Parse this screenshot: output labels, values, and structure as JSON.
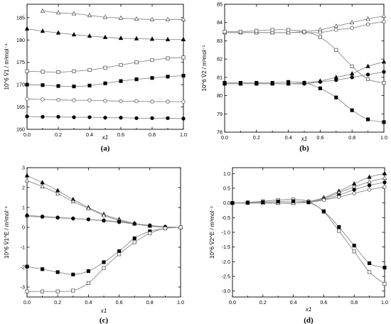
{
  "chart_data": [
    {
      "type": "line",
      "caption": "(a)",
      "xlabel": "x1",
      "ylabel": "10^6 V̄1 / m³mol⁻¹",
      "xlim": [
        0,
        1.0
      ],
      "ylim": [
        160,
        188
      ],
      "xticks": [
        0.0,
        0.2,
        0.4,
        0.6,
        0.8,
        1.0
      ],
      "xtick_labels": [
        "0.0",
        "0.2",
        "0.4",
        "0.6",
        "0.8",
        "1.0"
      ],
      "yticks": [
        160,
        165,
        170,
        175,
        180,
        185
      ],
      "ytick_labels": [
        "160",
        "165",
        "170",
        "175",
        "180",
        "185"
      ],
      "grid": false,
      "legend": "none",
      "series": [
        {
          "marker": "open-triangle",
          "x": [
            0.1,
            0.2,
            0.3,
            0.4,
            0.5,
            0.6,
            0.7,
            0.8,
            0.9,
            1.0
          ],
          "y": [
            186.5,
            186.1,
            185.9,
            185.5,
            185.1,
            184.9,
            184.7,
            184.6,
            184.6,
            184.6
          ]
        },
        {
          "marker": "filled-triangle",
          "x": [
            0.0,
            0.1,
            0.2,
            0.3,
            0.4,
            0.5,
            0.6,
            0.7,
            0.8,
            0.9,
            1.0
          ],
          "y": [
            182.5,
            182.0,
            181.6,
            181.2,
            180.9,
            180.6,
            180.4,
            180.3,
            180.2,
            180.1,
            180.1
          ]
        },
        {
          "marker": "open-square",
          "x": [
            0.0,
            0.1,
            0.2,
            0.3,
            0.4,
            0.5,
            0.6,
            0.7,
            0.8,
            0.9,
            1.0
          ],
          "y": [
            173.0,
            172.9,
            172.8,
            173.0,
            173.3,
            173.8,
            174.4,
            175.0,
            175.5,
            175.9,
            176.1
          ]
        },
        {
          "marker": "filled-square",
          "x": [
            0.0,
            0.1,
            0.2,
            0.3,
            0.4,
            0.5,
            0.6,
            0.7,
            0.8,
            0.9,
            1.0
          ],
          "y": [
            170.0,
            169.9,
            169.7,
            169.6,
            169.8,
            170.3,
            170.8,
            171.2,
            171.5,
            171.8,
            172.0
          ]
        },
        {
          "marker": "open-circle",
          "x": [
            0.0,
            0.1,
            0.2,
            0.3,
            0.4,
            0.5,
            0.6,
            0.7,
            0.8,
            0.9,
            1.0
          ],
          "y": [
            166.8,
            166.7,
            166.6,
            166.5,
            166.5,
            166.4,
            166.3,
            166.3,
            166.2,
            166.2,
            166.2
          ]
        },
        {
          "marker": "filled-circle",
          "x": [
            0.0,
            0.1,
            0.2,
            0.3,
            0.4,
            0.5,
            0.6,
            0.7,
            0.8,
            0.9,
            1.0
          ],
          "y": [
            162.9,
            162.8,
            162.8,
            162.7,
            162.7,
            162.6,
            162.6,
            162.5,
            162.5,
            162.5,
            162.4
          ]
        }
      ]
    },
    {
      "type": "line",
      "caption": "(b)",
      "xlabel": "x1",
      "ylabel": "10^6 V̄2 / m³mol⁻¹",
      "xlim": [
        0,
        1.0
      ],
      "ylim": [
        78,
        85
      ],
      "xticks": [
        0.0,
        0.2,
        0.4,
        0.6,
        0.8,
        1.0
      ],
      "xtick_labels": [
        "0.0",
        "0.2",
        "0.4",
        "0.6",
        "0.8",
        "1.0"
      ],
      "yticks": [
        78,
        79,
        80,
        81,
        82,
        83,
        84,
        85
      ],
      "ytick_labels": [
        "78",
        "79",
        "80",
        "81",
        "82",
        "83",
        "84",
        "85"
      ],
      "grid": false,
      "legend": "none",
      "series": [
        {
          "marker": "open-triangle",
          "x": [
            0.0,
            0.1,
            0.2,
            0.3,
            0.4,
            0.5,
            0.6,
            0.7,
            0.8,
            0.9,
            1.0
          ],
          "y": [
            83.45,
            83.45,
            83.45,
            83.45,
            83.45,
            83.5,
            83.6,
            83.8,
            84.0,
            84.2,
            84.35
          ]
        },
        {
          "marker": "open-circle",
          "x": [
            0.0,
            0.1,
            0.2,
            0.3,
            0.4,
            0.5,
            0.6,
            0.7,
            0.8,
            0.9,
            1.0
          ],
          "y": [
            83.45,
            83.45,
            83.45,
            83.45,
            83.45,
            83.45,
            83.45,
            83.6,
            83.7,
            83.9,
            84.05
          ]
        },
        {
          "marker": "open-square",
          "x": [
            0.0,
            0.1,
            0.2,
            0.3,
            0.4,
            0.5,
            0.6,
            0.7,
            0.8,
            0.9,
            1.0
          ],
          "y": [
            83.5,
            83.5,
            83.55,
            83.6,
            83.6,
            83.5,
            83.2,
            82.5,
            81.6,
            80.9,
            80.7
          ]
        },
        {
          "marker": "filled-triangle",
          "x": [
            0.0,
            0.1,
            0.2,
            0.3,
            0.4,
            0.5,
            0.6,
            0.7,
            0.8,
            0.9,
            1.0
          ],
          "y": [
            80.65,
            80.65,
            80.65,
            80.65,
            80.65,
            80.7,
            80.8,
            81.0,
            81.2,
            81.6,
            81.85
          ]
        },
        {
          "marker": "filled-circle",
          "x": [
            0.0,
            0.1,
            0.2,
            0.3,
            0.4,
            0.5,
            0.6,
            0.7,
            0.8,
            0.9,
            1.0
          ],
          "y": [
            80.65,
            80.65,
            80.65,
            80.65,
            80.65,
            80.65,
            80.75,
            80.85,
            81.0,
            81.15,
            81.3
          ]
        },
        {
          "marker": "filled-square",
          "x": [
            0.0,
            0.1,
            0.2,
            0.3,
            0.4,
            0.5,
            0.6,
            0.7,
            0.8,
            0.9,
            1.0
          ],
          "y": [
            80.7,
            80.7,
            80.7,
            80.7,
            80.75,
            80.7,
            80.4,
            79.9,
            79.2,
            78.7,
            78.55
          ]
        }
      ]
    },
    {
      "type": "line",
      "caption": "(c)",
      "xlabel": "x1",
      "ylabel": "10^6 V̄1^E / m³mol⁻¹",
      "xlim": [
        0,
        1.0
      ],
      "ylim": [
        -3.5,
        3.0
      ],
      "xticks": [
        0.0,
        0.2,
        0.4,
        0.6,
        0.8,
        1.0
      ],
      "xtick_labels": [
        "0.0",
        "0.2",
        "0.4",
        "0.6",
        "0.8",
        "1.0"
      ],
      "yticks": [
        -3,
        -2,
        -1,
        0,
        1,
        2,
        3
      ],
      "ytick_labels": [
        "-3",
        "-2",
        "-1",
        "0",
        "1",
        "2",
        "3"
      ],
      "grid": false,
      "legend": "none",
      "series": [
        {
          "marker": "filled-triangle",
          "x": [
            0.0,
            0.1,
            0.2,
            0.3,
            0.4,
            0.5,
            0.6,
            0.7,
            0.8,
            0.9,
            1.0
          ],
          "y": [
            2.6,
            2.25,
            1.85,
            1.4,
            1.0,
            0.65,
            0.4,
            0.2,
            0.07,
            0.01,
            0.0
          ]
        },
        {
          "marker": "open-triangle",
          "x": [
            0.0,
            0.1,
            0.2,
            0.3,
            0.4,
            0.5,
            0.6,
            0.7,
            0.8,
            0.9,
            1.0
          ],
          "y": [
            2.35,
            2.05,
            1.7,
            1.3,
            0.95,
            0.6,
            0.35,
            0.18,
            0.06,
            0.01,
            0.0
          ]
        },
        {
          "marker": "open-circle",
          "x": [
            0.0,
            0.1,
            0.2,
            0.3,
            0.4,
            0.5,
            0.6,
            0.7,
            0.8,
            0.9,
            1.0
          ],
          "y": [
            0.55,
            0.52,
            0.48,
            0.44,
            0.4,
            0.33,
            0.26,
            0.17,
            0.08,
            0.02,
            0.0
          ]
        },
        {
          "marker": "filled-circle",
          "x": [
            0.0,
            0.1,
            0.2,
            0.3,
            0.4,
            0.5,
            0.6,
            0.7,
            0.8,
            0.9,
            1.0
          ],
          "y": [
            0.6,
            0.55,
            0.5,
            0.45,
            0.4,
            0.35,
            0.28,
            0.19,
            0.1,
            0.03,
            0.0
          ]
        },
        {
          "marker": "filled-square",
          "x": [
            0.0,
            0.1,
            0.2,
            0.3,
            0.4,
            0.5,
            0.6,
            0.7,
            0.8,
            0.9,
            1.0
          ],
          "y": [
            -1.97,
            -2.1,
            -2.25,
            -2.37,
            -2.2,
            -1.75,
            -1.2,
            -0.55,
            -0.2,
            -0.05,
            0.0
          ]
        },
        {
          "marker": "open-square",
          "x": [
            0.0,
            0.1,
            0.2,
            0.3,
            0.4,
            0.5,
            0.6,
            0.7,
            0.8,
            0.9,
            1.0
          ],
          "y": [
            -3.22,
            -3.22,
            -3.22,
            -3.18,
            -2.8,
            -2.05,
            -1.35,
            -0.75,
            -0.3,
            -0.05,
            0.0
          ]
        }
      ]
    },
    {
      "type": "line",
      "caption": "(d)",
      "xlabel": "x1",
      "ylabel": "10^6 V̄2^E / m³mol⁻¹",
      "xlim": [
        0,
        1.0
      ],
      "ylim": [
        -3.2,
        1.2
      ],
      "xticks": [
        0.0,
        0.2,
        0.4,
        0.6,
        0.8,
        1.0
      ],
      "xtick_labels": [
        "0.0",
        "0.2",
        "0.4",
        "0.6",
        "0.8",
        "1.0"
      ],
      "yticks": [
        -3.0,
        -2.5,
        -2.0,
        -1.5,
        -1.0,
        -0.5,
        0.0,
        0.5,
        1.0
      ],
      "ytick_labels": [
        "-3.0",
        "-2.5",
        "-2.0",
        "-1.5",
        "-1.0",
        "-0.5",
        "0.0",
        "0.5",
        "1.0"
      ],
      "grid": false,
      "legend": "none",
      "series": [
        {
          "marker": "filled-triangle",
          "x": [
            0.0,
            0.1,
            0.2,
            0.3,
            0.4,
            0.5,
            0.6,
            0.7,
            0.8,
            0.9,
            1.0
          ],
          "y": [
            0.0,
            0.0,
            0.0,
            0.0,
            0.0,
            0.05,
            0.18,
            0.4,
            0.65,
            0.88,
            1.0
          ]
        },
        {
          "marker": "open-triangle",
          "x": [
            0.0,
            0.1,
            0.2,
            0.3,
            0.4,
            0.5,
            0.6,
            0.7,
            0.8,
            0.9,
            1.0
          ],
          "y": [
            0.0,
            0.0,
            0.0,
            0.0,
            0.0,
            0.04,
            0.15,
            0.35,
            0.55,
            0.72,
            0.85
          ]
        },
        {
          "marker": "filled-circle",
          "x": [
            0.0,
            0.1,
            0.2,
            0.3,
            0.4,
            0.5,
            0.6,
            0.7,
            0.8,
            0.9,
            1.0
          ],
          "y": [
            0.0,
            0.0,
            0.0,
            0.0,
            0.0,
            0.03,
            0.12,
            0.27,
            0.45,
            0.6,
            0.7
          ]
        },
        {
          "marker": "open-circle",
          "x": [
            0.0,
            0.1,
            0.2,
            0.3,
            0.4,
            0.5,
            0.6,
            0.7,
            0.8,
            0.9,
            1.0
          ],
          "y": [
            0.0,
            0.0,
            0.0,
            0.0,
            0.0,
            0.02,
            0.1,
            0.2,
            0.33,
            0.45,
            0.55
          ]
        },
        {
          "marker": "open-square",
          "x": [
            0.0,
            0.1,
            0.2,
            0.3,
            0.4,
            0.5,
            0.6,
            0.7,
            0.8,
            0.9,
            1.0
          ],
          "y": [
            0.0,
            0.02,
            0.06,
            0.1,
            0.12,
            0.05,
            -0.3,
            -0.95,
            -1.65,
            -2.35,
            -2.75
          ]
        },
        {
          "marker": "filled-square",
          "x": [
            0.0,
            0.1,
            0.2,
            0.3,
            0.4,
            0.5,
            0.6,
            0.7,
            0.8,
            0.9,
            1.0
          ],
          "y": [
            0.0,
            0.01,
            0.03,
            0.05,
            0.06,
            0.02,
            -0.28,
            -0.82,
            -1.45,
            -2.05,
            -2.2
          ]
        }
      ]
    }
  ]
}
